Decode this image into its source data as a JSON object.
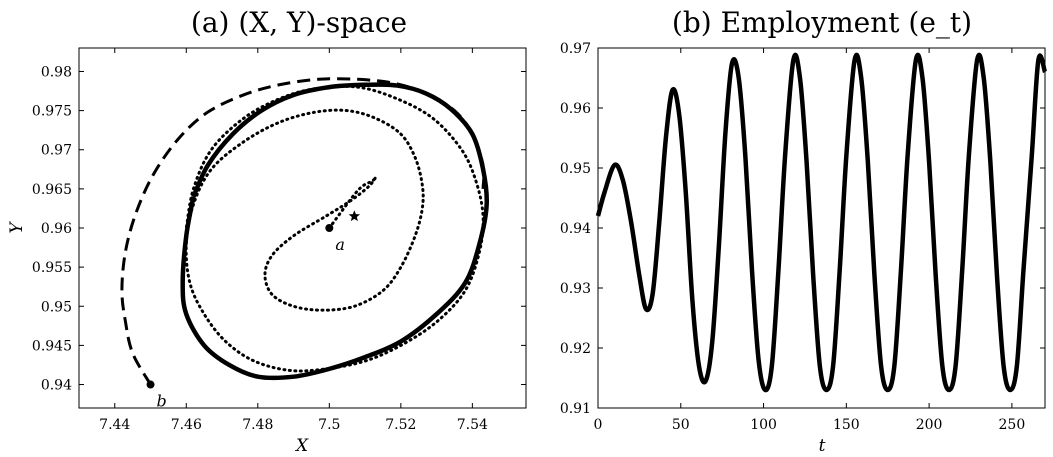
{
  "chart_data": [
    {
      "type": "line",
      "title": "(a) (X, Y)-space",
      "xlabel": "X",
      "ylabel": "Y",
      "xlim": [
        7.43,
        7.555
      ],
      "ylim": [
        0.937,
        0.983
      ],
      "xticks": [
        "7.44",
        "7.46",
        "7.48",
        "7.5",
        "7.52",
        "7.54"
      ],
      "yticks": [
        "0.94",
        "0.945",
        "0.95",
        "0.955",
        "0.96",
        "0.965",
        "0.97",
        "0.975",
        "0.98"
      ],
      "series": [
        {
          "style": "dotted",
          "x": [
            7.5,
            7.508,
            7.512,
            7.513,
            7.511,
            7.506,
            7.499,
            7.49,
            7.484,
            7.482,
            7.484,
            7.49,
            7.498,
            7.507,
            7.515,
            7.52,
            7.524,
            7.526,
            7.526,
            7.524,
            7.52,
            7.513,
            7.505,
            7.496,
            7.486,
            7.476,
            7.467,
            7.462,
            7.46,
            7.461,
            7.465,
            7.471,
            7.479,
            7.489,
            7.499,
            7.51,
            7.52,
            7.53,
            7.538,
            7.542,
            7.543,
            7.541,
            7.537,
            7.529,
            7.519,
            7.508,
            7.496,
            7.486,
            7.476,
            7.467,
            7.462,
            7.46
          ],
          "y": [
            0.96,
            0.9648,
            0.966,
            0.9665,
            0.9653,
            0.9635,
            0.9615,
            0.959,
            0.9565,
            0.954,
            0.9515,
            0.95,
            0.9495,
            0.95,
            0.952,
            0.955,
            0.959,
            0.9625,
            0.9655,
            0.969,
            0.972,
            0.974,
            0.975,
            0.9748,
            0.9735,
            0.971,
            0.9675,
            0.963,
            0.958,
            0.953,
            0.949,
            0.9455,
            0.943,
            0.9418,
            0.942,
            0.943,
            0.945,
            0.948,
            0.952,
            0.957,
            0.9615,
            0.966,
            0.97,
            0.974,
            0.9765,
            0.978,
            0.9778,
            0.9765,
            0.974,
            0.97,
            0.965,
            0.96
          ]
        },
        {
          "style": "solid",
          "x": [
            7.462,
            7.46,
            7.459,
            7.46,
            7.465,
            7.472,
            7.48,
            7.49,
            7.5,
            7.51,
            7.52,
            7.53,
            7.538,
            7.542,
            7.544,
            7.543,
            7.54,
            7.534,
            7.527,
            7.519,
            7.51,
            7.5,
            7.49,
            7.481,
            7.473,
            7.466,
            7.462
          ],
          "y": [
            0.964,
            0.959,
            0.953,
            0.949,
            0.945,
            0.9425,
            0.941,
            0.941,
            0.942,
            0.9435,
            0.9455,
            0.949,
            0.953,
            0.958,
            0.963,
            0.9675,
            0.972,
            0.9752,
            0.9772,
            0.9782,
            0.9783,
            0.978,
            0.977,
            0.975,
            0.972,
            0.968,
            0.964
          ]
        },
        {
          "style": "dashed",
          "x": [
            7.45,
            7.445,
            7.443,
            7.442,
            7.443,
            7.446,
            7.451,
            7.458,
            7.466,
            7.476,
            7.486,
            7.497,
            7.508,
            7.518,
            7.527,
            7.535,
            7.54,
            7.543,
            7.543
          ],
          "y": [
            0.94,
            0.944,
            0.948,
            0.952,
            0.957,
            0.962,
            0.967,
            0.9715,
            0.9748,
            0.977,
            0.9783,
            0.979,
            0.979,
            0.9785,
            0.9772,
            0.975,
            0.972,
            0.968,
            0.965
          ]
        }
      ],
      "markers": [
        {
          "label": "a",
          "x": 7.5,
          "y": 0.96,
          "shape": "dot"
        },
        {
          "label": "b",
          "x": 7.45,
          "y": 0.94,
          "shape": "dot"
        },
        {
          "label": "",
          "x": 7.507,
          "y": 0.9615,
          "shape": "star"
        }
      ]
    },
    {
      "type": "line",
      "title": "(b) Employment (e_t)",
      "xlabel": "t",
      "ylabel": "",
      "xlim": [
        0,
        270
      ],
      "ylim": [
        0.91,
        0.97
      ],
      "xticks": [
        "0",
        "50",
        "100",
        "150",
        "200",
        "250"
      ],
      "yticks": [
        "0.91",
        "0.92",
        "0.93",
        "0.94",
        "0.95",
        "0.96",
        "0.97"
      ],
      "series": [
        {
          "style": "solid",
          "x": [
            0,
            4,
            10,
            15,
            20,
            25,
            29,
            33,
            37,
            41,
            45,
            49,
            53,
            57,
            61,
            65,
            69,
            73,
            77,
            81,
            85,
            89,
            93,
            97,
            101,
            105,
            109,
            113,
            118,
            122,
            126,
            130,
            134,
            138,
            142,
            146,
            150,
            155,
            159,
            163,
            167,
            171,
            175,
            179,
            183,
            187,
            192,
            196,
            200,
            204,
            208,
            212,
            216,
            220,
            224,
            229,
            233,
            237,
            241,
            245,
            249,
            253,
            257,
            262,
            266,
            270
          ],
          "y": [
            0.942,
            0.946,
            0.9505,
            0.948,
            0.941,
            0.932,
            0.9265,
            0.929,
            0.941,
            0.955,
            0.963,
            0.959,
            0.946,
            0.928,
            0.917,
            0.9145,
            0.921,
            0.937,
            0.956,
            0.9675,
            0.965,
            0.952,
            0.933,
            0.918,
            0.913,
            0.917,
            0.933,
            0.952,
            0.968,
            0.965,
            0.951,
            0.932,
            0.917,
            0.913,
            0.917,
            0.933,
            0.952,
            0.968,
            0.965,
            0.951,
            0.932,
            0.917,
            0.913,
            0.917,
            0.933,
            0.952,
            0.968,
            0.965,
            0.951,
            0.932,
            0.917,
            0.913,
            0.917,
            0.933,
            0.952,
            0.968,
            0.965,
            0.951,
            0.932,
            0.917,
            0.913,
            0.917,
            0.933,
            0.952,
            0.968,
            0.966
          ]
        }
      ]
    }
  ]
}
